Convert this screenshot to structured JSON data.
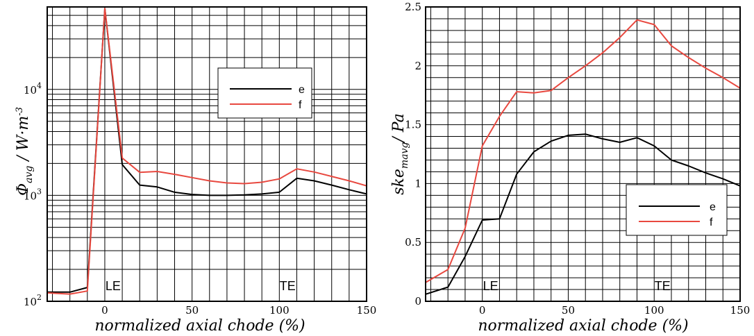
{
  "colors": {
    "e": "#000000",
    "f": "#e8483f"
  },
  "chart_data": [
    {
      "type": "line",
      "title": "",
      "xlabel": "normalized axial chode (%)",
      "ylabel": {
        "symbol": "Φ",
        "sub": "avg",
        "sep": " / ",
        "unit": "W·m",
        "sup": "-3"
      },
      "xlim": [
        -33,
        150
      ],
      "ylim": [
        100,
        60000
      ],
      "yscale": "log",
      "xticks": [
        0,
        50,
        100,
        150
      ],
      "xtick_labels": [
        "0",
        "50",
        "100",
        "150"
      ],
      "yticks": [
        {
          "base": "10",
          "exp": "2",
          "value": 100
        },
        {
          "base": "10",
          "exp": "3",
          "value": 1000
        },
        {
          "base": "10",
          "exp": "4",
          "value": 10000
        }
      ],
      "grid": true,
      "legend_position": "upper-right",
      "annotations": [
        {
          "text": "LE",
          "x": 0
        },
        {
          "text": "TE",
          "x": 100
        }
      ],
      "series": [
        {
          "name": "e",
          "x": [
            -33,
            -20,
            -10,
            0,
            10,
            20,
            30,
            40,
            50,
            60,
            70,
            80,
            90,
            100,
            110,
            120,
            130,
            140,
            150
          ],
          "y": [
            122,
            122,
            135,
            58000,
            1950,
            1250,
            1200,
            1070,
            1020,
            1000,
            1000,
            1010,
            1030,
            1070,
            1450,
            1370,
            1250,
            1130,
            1030
          ]
        },
        {
          "name": "f",
          "x": [
            -33,
            -20,
            -10,
            0,
            10,
            20,
            30,
            40,
            50,
            60,
            70,
            80,
            90,
            100,
            110,
            120,
            130,
            140,
            150
          ],
          "y": [
            120,
            117,
            125,
            58000,
            2250,
            1650,
            1680,
            1580,
            1470,
            1370,
            1310,
            1290,
            1330,
            1430,
            1780,
            1660,
            1510,
            1370,
            1230
          ]
        }
      ]
    },
    {
      "type": "line",
      "title": "",
      "xlabel": "normalized axial chode (%)",
      "ylabel": {
        "main": "ske",
        "sub": "mavg",
        "rest": "/ Pa"
      },
      "xlim": [
        -33,
        150
      ],
      "ylim": [
        0,
        2.5
      ],
      "xticks": [
        0,
        50,
        100,
        150
      ],
      "xtick_labels": [
        "0",
        "50",
        "100",
        "150"
      ],
      "yticks": [
        0,
        0.5,
        1,
        1.5,
        2,
        2.5
      ],
      "ytick_labels": [
        "0",
        "0.5",
        "1",
        "1.5",
        "2",
        "2.5"
      ],
      "grid": true,
      "legend_position": "lower-right",
      "annotations": [
        {
          "text": "LE",
          "x": 0
        },
        {
          "text": "TE",
          "x": 100
        }
      ],
      "series": [
        {
          "name": "e",
          "x": [
            -33,
            -20,
            -10,
            0,
            10,
            20,
            30,
            40,
            50,
            60,
            70,
            80,
            90,
            100,
            110,
            120,
            130,
            140,
            150
          ],
          "y": [
            0.06,
            0.12,
            0.38,
            0.69,
            0.7,
            1.08,
            1.27,
            1.36,
            1.41,
            1.42,
            1.38,
            1.35,
            1.39,
            1.32,
            1.2,
            1.15,
            1.09,
            1.04,
            0.98
          ]
        },
        {
          "name": "f",
          "x": [
            -33,
            -20,
            -10,
            0,
            10,
            20,
            30,
            40,
            50,
            60,
            70,
            80,
            90,
            100,
            110,
            120,
            130,
            140,
            150
          ],
          "y": [
            0.16,
            0.27,
            0.62,
            1.32,
            1.57,
            1.78,
            1.77,
            1.79,
            1.9,
            2.0,
            2.11,
            2.24,
            2.39,
            2.35,
            2.17,
            2.07,
            1.98,
            1.9,
            1.81
          ]
        }
      ]
    }
  ]
}
